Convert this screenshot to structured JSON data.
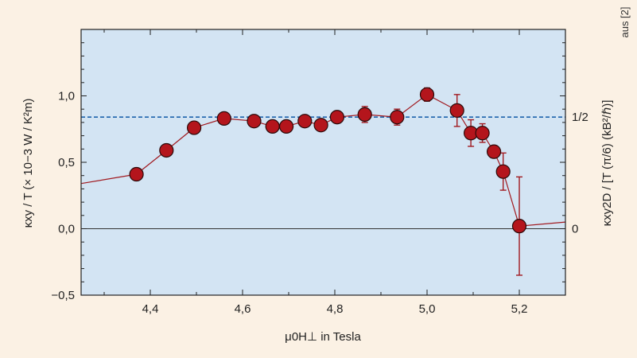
{
  "chart_data": {
    "type": "scatter",
    "xlabel": "μ0H⊥ in Tesla",
    "ylabel": "κxy / T (× 10−3 W / K²m)",
    "ylabel_right": "κxy2D / [T (π/6) (kB²/ℏ)]",
    "source_note": "aus [2]",
    "xlim": [
      4.25,
      5.3
    ],
    "ylim": [
      -0.5,
      1.5
    ],
    "x_ticks": [
      4.4,
      4.6,
      4.8,
      5.0,
      5.2
    ],
    "x_tick_labels": [
      "4,4",
      "4,6",
      "4,8",
      "5,0",
      "5,2"
    ],
    "y_ticks": [
      -0.5,
      0.0,
      0.5,
      1.0
    ],
    "y_tick_labels": [
      "−0,5",
      "0,0",
      "0,5",
      "1,0"
    ],
    "right_ticks": [
      0.0,
      0.84
    ],
    "right_tick_labels": [
      "0",
      "1/2"
    ],
    "reference_line": {
      "y": 0.84,
      "style": "dashed"
    },
    "zero_line": {
      "y": 0.0
    },
    "series": [
      {
        "x": [
          4.25,
          4.37,
          4.435,
          4.495,
          4.56,
          4.625,
          4.665,
          4.695,
          4.735,
          4.77,
          4.805,
          4.865,
          4.935,
          5.0,
          5.065,
          5.095,
          5.12,
          5.145,
          5.165,
          5.2,
          5.3
        ],
        "y": [
          0.34,
          0.41,
          0.59,
          0.76,
          0.83,
          0.81,
          0.77,
          0.77,
          0.81,
          0.78,
          0.84,
          0.86,
          0.84,
          1.01,
          0.89,
          0.72,
          0.72,
          0.58,
          0.43,
          0.02,
          0.05
        ],
        "err": [
          0,
          0,
          0,
          0,
          0,
          0,
          0,
          0,
          0,
          0,
          0,
          0.06,
          0.06,
          0.05,
          0.12,
          0.1,
          0.07,
          0,
          0.14,
          0.37,
          0
        ],
        "marker": [
          false,
          true,
          true,
          true,
          true,
          true,
          true,
          true,
          true,
          true,
          true,
          true,
          true,
          true,
          true,
          true,
          true,
          true,
          true,
          true,
          false
        ]
      }
    ],
    "colors": {
      "background": "#fbf1e4",
      "plot_area": "#d3e4f3",
      "marker_fill": "#b4151c",
      "line": "#a11a20",
      "reference_line": "#1f64ad"
    }
  }
}
